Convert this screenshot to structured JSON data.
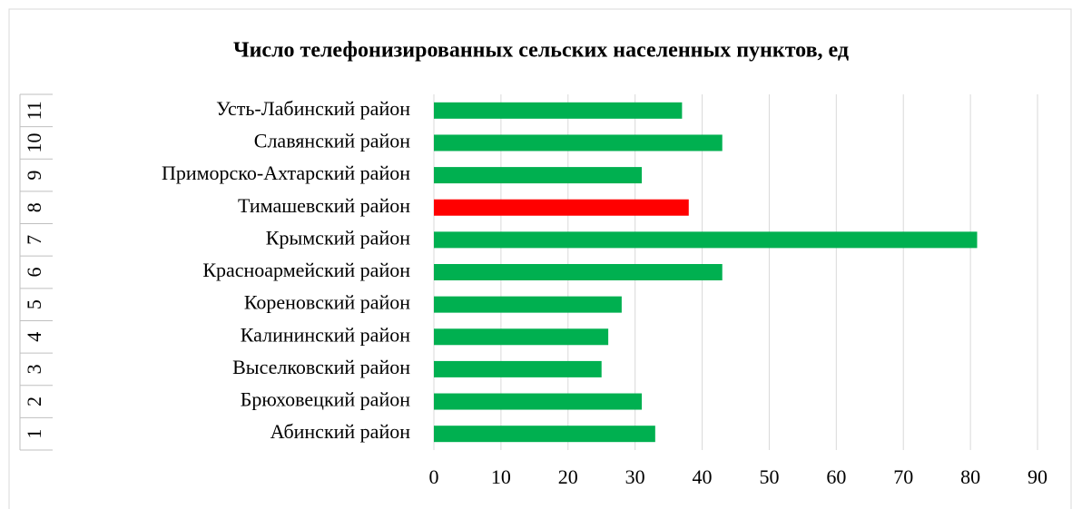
{
  "chart_data": {
    "type": "barh",
    "title": "Число телефонизированных сельских населенных пунктов, ед",
    "category_numbers": [
      "1",
      "2",
      "3",
      "4",
      "5",
      "6",
      "7",
      "8",
      "9",
      "10",
      "11"
    ],
    "categories": [
      "Абинский район",
      "Брюховецкий район",
      "Выселковский район",
      "Калининский  район",
      "Кореновский район",
      "Красноармейский район",
      "Крымский район",
      "Тимашевский район",
      "Приморско-Ахтарский район",
      "Славянский район",
      "Усть-Лабинский район"
    ],
    "values": [
      33,
      31,
      25,
      26,
      28,
      43,
      81,
      38,
      31,
      43,
      37
    ],
    "colors": [
      "#00b050",
      "#00b050",
      "#00b050",
      "#00b050",
      "#00b050",
      "#00b050",
      "#00b050",
      "#ff0000",
      "#00b050",
      "#00b050",
      "#00b050"
    ],
    "xlim": [
      0,
      90
    ],
    "xticks": [
      0,
      10,
      20,
      30,
      40,
      50,
      60,
      70,
      80,
      90
    ],
    "grid": true
  }
}
